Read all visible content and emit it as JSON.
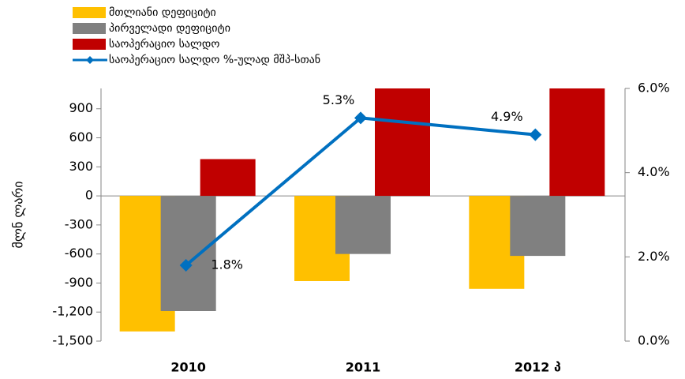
{
  "chart_data": {
    "type": "bar",
    "categories": [
      "2010",
      "2011",
      "2012 პ"
    ],
    "y_label": "მლნ ლარი",
    "series": [
      {
        "name": "მთლიანი დეფიციტი",
        "color": "#ffc000",
        "values": [
          -1400,
          -880,
          -960
        ]
      },
      {
        "name": "პირველადი დეფიციტი",
        "color": "#808080",
        "values": [
          -1190,
          -600,
          -620
        ]
      },
      {
        "name": "საოპერაციო სალდო",
        "color": "#c00000",
        "values": [
          380,
          1110,
          1110
        ]
      },
      {
        "name": "საოპერაციო სალდო %-ულად მშპ-სთან",
        "color": "#0070c0",
        "type": "line",
        "axis": "y2",
        "values": [
          1.8,
          5.3,
          4.9
        ],
        "value_labels": [
          "1.8%",
          "5.3%",
          "4.9%"
        ]
      }
    ],
    "ylim": [
      -1500,
      1110
    ],
    "yticks": [
      {
        "value": -1500,
        "label": "-1,500"
      },
      {
        "value": -1200,
        "label": "-1,200"
      },
      -900,
      -600,
      -300,
      0,
      300,
      600,
      900
    ],
    "y2lim": [
      0,
      6
    ],
    "y2ticks": [
      {
        "value": 0,
        "label": "0.0%"
      },
      {
        "value": 2,
        "label": "2.0%"
      },
      {
        "value": 4,
        "label": "4.0%"
      },
      {
        "value": 6,
        "label": "6.0%"
      }
    ],
    "legend": "top-left"
  }
}
